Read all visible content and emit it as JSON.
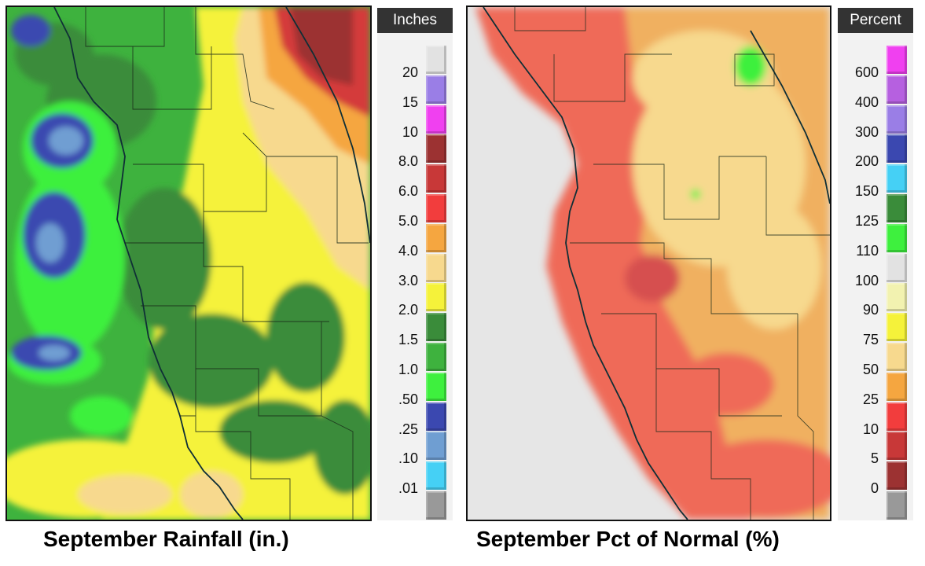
{
  "left_panel": {
    "caption": "September Rainfall (in.)",
    "legend_title": "Inches",
    "legend": [
      {
        "label": "20",
        "color": "#e2e2e2"
      },
      {
        "label": "15",
        "color": "#9a7ee6"
      },
      {
        "label": "10",
        "color": "#f040f0"
      },
      {
        "label": "8.0",
        "color": "#9c3232"
      },
      {
        "label": "6.0",
        "color": "#c83838"
      },
      {
        "label": "5.0",
        "color": "#f23d3d"
      },
      {
        "label": "4.0",
        "color": "#f5a640"
      },
      {
        "label": "3.0",
        "color": "#f7d98e"
      },
      {
        "label": "2.0",
        "color": "#f5f23a"
      },
      {
        "label": "1.5",
        "color": "#3a8c3a"
      },
      {
        "label": "1.0",
        "color": "#3eb23e"
      },
      {
        "label": ".50",
        "color": "#3ef03e"
      },
      {
        "label": ".25",
        "color": "#3b48b0"
      },
      {
        "label": ".10",
        "color": "#6f9ed2"
      },
      {
        "label": ".01",
        "color": "#45d0f5"
      },
      {
        "label": "",
        "color": "#999999"
      }
    ]
  },
  "right_panel": {
    "caption": "September Pct of Normal (%)",
    "legend_title": "Percent",
    "legend": [
      {
        "label": "600",
        "color": "#f040f0"
      },
      {
        "label": "400",
        "color": "#b660e0"
      },
      {
        "label": "300",
        "color": "#9a7ee6"
      },
      {
        "label": "200",
        "color": "#3b48b0"
      },
      {
        "label": "150",
        "color": "#45d0f5"
      },
      {
        "label": "125",
        "color": "#3a8c3a"
      },
      {
        "label": "110",
        "color": "#3ef03e"
      },
      {
        "label": "100",
        "color": "#e2e2e2"
      },
      {
        "label": "90",
        "color": "#f2f2b0"
      },
      {
        "label": "75",
        "color": "#f5f23a"
      },
      {
        "label": "50",
        "color": "#f7d98e"
      },
      {
        "label": "25",
        "color": "#f5a640"
      },
      {
        "label": "10",
        "color": "#f23d3d"
      },
      {
        "label": "5",
        "color": "#c83838"
      },
      {
        "label": "0",
        "color": "#9c3232"
      },
      {
        "label": "",
        "color": "#999999"
      }
    ]
  }
}
